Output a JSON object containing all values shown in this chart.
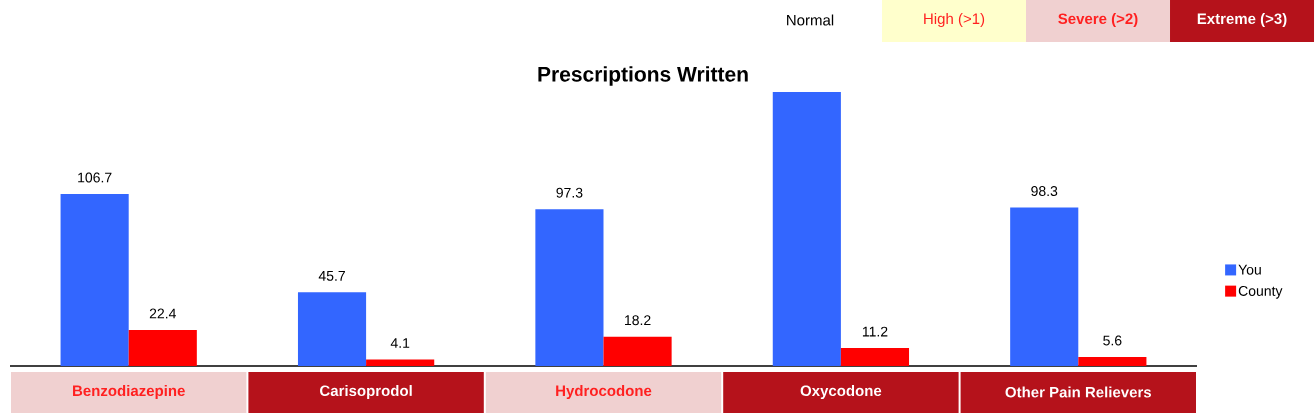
{
  "chart_data": {
    "type": "bar",
    "title": "Prescriptions Written",
    "categories": [
      "Benzodiazepine",
      "Carisoprodol",
      "Hydrocodone",
      "Oxycodone",
      "Other Pain Relievers"
    ],
    "series": [
      {
        "name": "You",
        "color": "#3366ff",
        "values": [
          106.7,
          45.7,
          97.3,
          170,
          98.3
        ],
        "value_labels": [
          "106.7",
          "45.7",
          "97.3",
          null,
          "98.3"
        ]
      },
      {
        "name": "County",
        "color": "#ff0000",
        "values": [
          22.4,
          4.1,
          18.2,
          11.2,
          5.6
        ],
        "value_labels": [
          "22.4",
          "4.1",
          "18.2",
          "11.2",
          "5.6"
        ]
      }
    ],
    "annotations": [
      "Normal",
      "High (>1)",
      "Severe (>2)",
      "Extreme (>3)"
    ],
    "legend": "right"
  }
}
